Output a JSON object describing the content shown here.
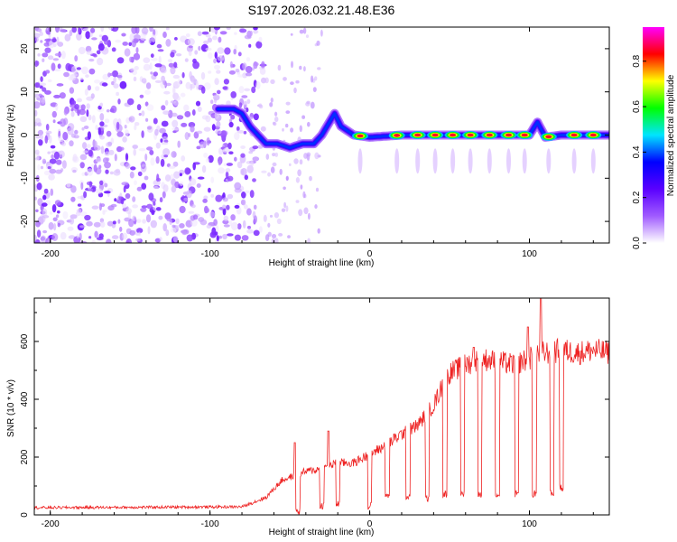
{
  "title": "S197.2026.032.21.48.E36",
  "colormap": [
    "#ffffff",
    "#a05bff",
    "#5a00ff",
    "#0000ff",
    "#00e5ff",
    "#00ff00",
    "#ffff00",
    "#ff0000",
    "#ff00ff"
  ],
  "chart_data": [
    {
      "type": "heatmap",
      "name": "spectrogram",
      "xlabel": "Height of straight line (km)",
      "ylabel": "Frequency (Hz)",
      "xlim": [
        -210,
        150
      ],
      "ylim": [
        -25,
        25
      ],
      "xticks": [
        -200,
        -100,
        0,
        100
      ],
      "yticks": [
        -20,
        -10,
        0,
        10,
        20
      ],
      "noise_region": {
        "x_range": [
          -210,
          -65
        ],
        "y_range": [
          -25,
          25
        ],
        "value_range": [
          0.0,
          0.2
        ]
      },
      "ridge": {
        "description": "frequency of the dominant spectral ridge vs height",
        "points": [
          [
            -95,
            6
          ],
          [
            -85,
            6
          ],
          [
            -80,
            5
          ],
          [
            -75,
            2
          ],
          [
            -70,
            0
          ],
          [
            -65,
            -2
          ],
          [
            -58,
            -2
          ],
          [
            -50,
            -3
          ],
          [
            -42,
            -2
          ],
          [
            -35,
            -2
          ],
          [
            -30,
            0
          ],
          [
            -22,
            5
          ],
          [
            -18,
            2
          ],
          [
            -10,
            0
          ],
          [
            0,
            -0.5
          ],
          [
            20,
            0
          ],
          [
            60,
            0
          ],
          [
            100,
            0
          ],
          [
            105,
            3
          ],
          [
            110,
            -0.5
          ],
          [
            120,
            0
          ],
          [
            150,
            0
          ]
        ]
      },
      "periodic_peaks": {
        "description": "x positions where the ridge reaches high amplitude (red)",
        "x": [
          -6,
          17,
          30,
          41,
          52,
          63,
          75,
          87,
          97,
          112,
          128,
          140
        ],
        "peak_amplitude": 0.85
      },
      "colorbar": {
        "label": "Normalized spectral amplitude",
        "range": [
          0,
          0.95
        ],
        "ticks": [
          0.0,
          0.2,
          0.4,
          0.6,
          0.8
        ]
      }
    },
    {
      "type": "line",
      "name": "snr",
      "color": "#ee2222",
      "xlabel": "Height of straight line (km)",
      "ylabel": "SNR (10 * v/v)",
      "xlim": [
        -210,
        150
      ],
      "ylim": [
        0,
        750
      ],
      "xticks": [
        -200,
        -100,
        0,
        100
      ],
      "yticks": [
        0,
        200,
        400,
        600
      ],
      "envelope": [
        [
          -210,
          25
        ],
        [
          -80,
          28
        ],
        [
          -65,
          60
        ],
        [
          -55,
          120
        ],
        [
          -40,
          150
        ],
        [
          -30,
          160
        ],
        [
          -20,
          180
        ],
        [
          -10,
          180
        ],
        [
          0,
          210
        ],
        [
          10,
          240
        ],
        [
          20,
          280
        ],
        [
          30,
          310
        ],
        [
          40,
          380
        ],
        [
          45,
          440
        ],
        [
          50,
          490
        ],
        [
          60,
          520
        ],
        [
          70,
          540
        ],
        [
          80,
          530
        ],
        [
          90,
          520
        ],
        [
          100,
          540
        ],
        [
          105,
          560
        ],
        [
          110,
          560
        ],
        [
          120,
          570
        ],
        [
          130,
          560
        ],
        [
          140,
          570
        ],
        [
          150,
          560
        ]
      ],
      "dropouts": [
        [
          -45,
          0
        ],
        [
          -30,
          20
        ],
        [
          -20,
          25
        ],
        [
          0,
          20
        ],
        [
          11,
          55
        ],
        [
          24,
          50
        ],
        [
          36,
          45
        ],
        [
          47,
          60
        ],
        [
          58,
          60
        ],
        [
          69,
          60
        ],
        [
          80,
          60
        ],
        [
          92,
          60
        ],
        [
          103,
          60
        ],
        [
          114,
          60
        ],
        [
          120,
          80
        ]
      ],
      "spikes": [
        [
          -47,
          250
        ],
        [
          -26,
          290
        ],
        [
          65,
          580
        ],
        [
          99,
          650
        ],
        [
          107,
          760
        ]
      ]
    }
  ]
}
